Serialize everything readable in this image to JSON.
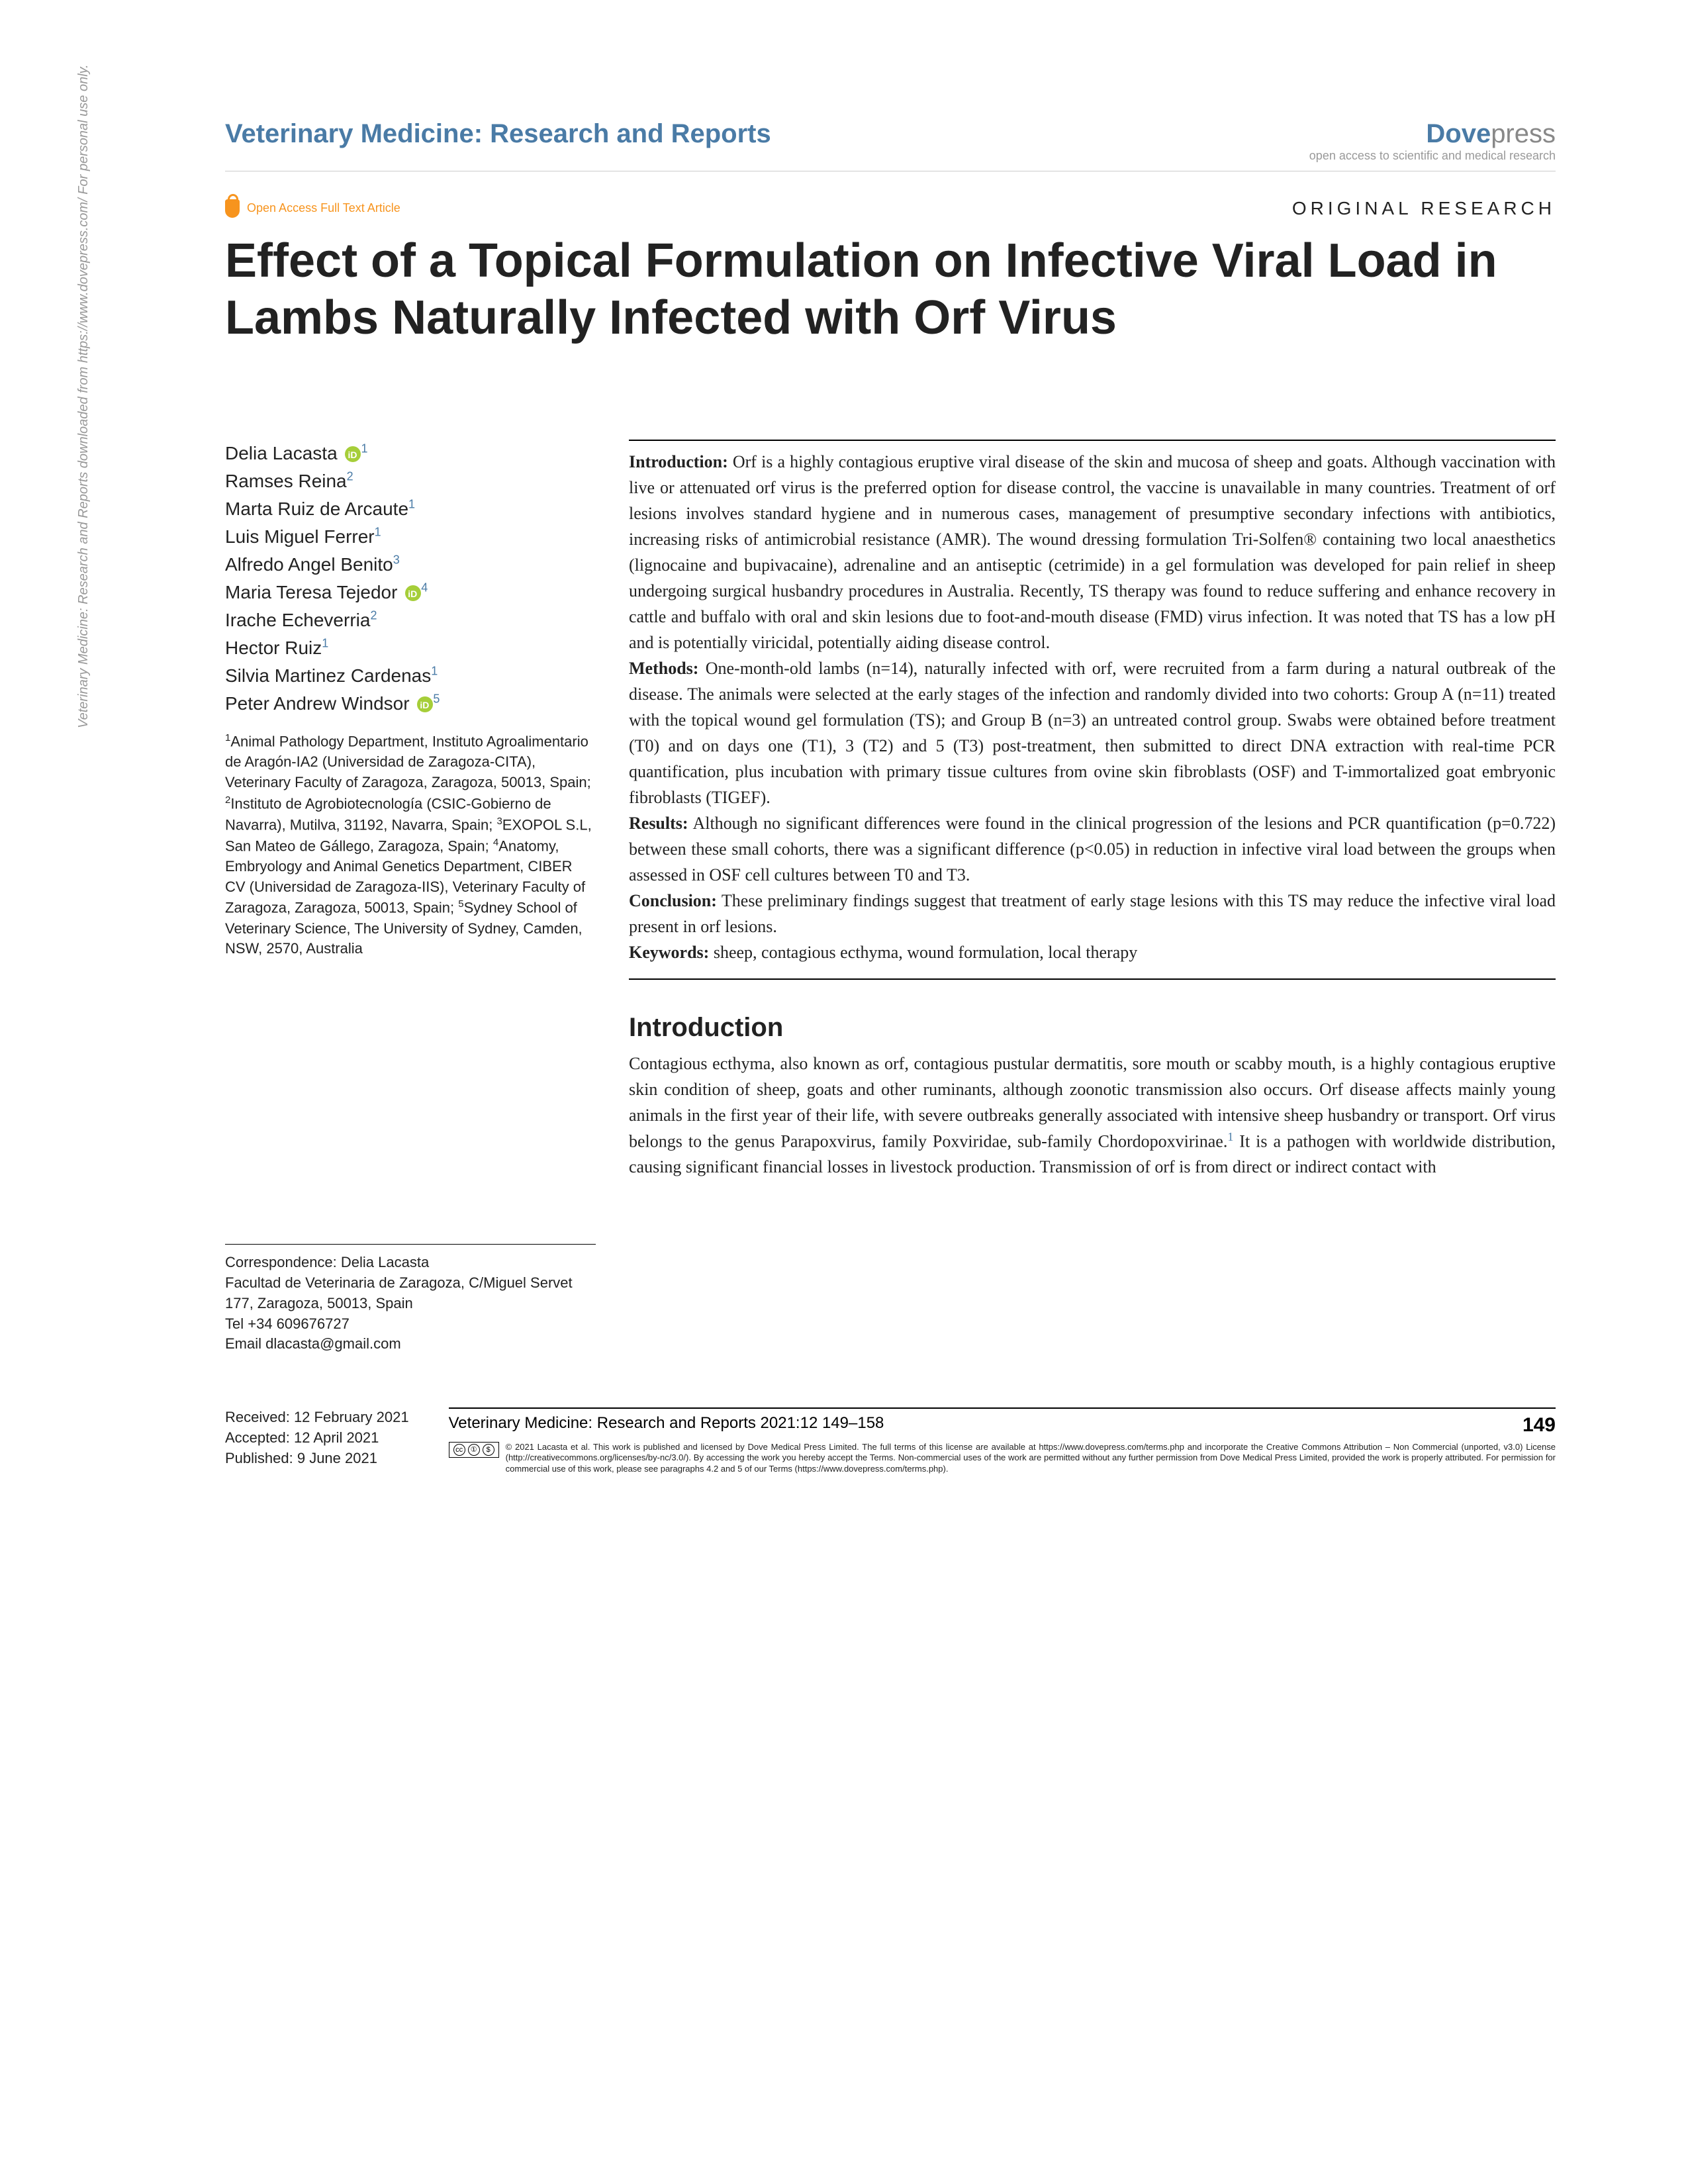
{
  "sidebar_note": "Veterinary Medicine: Research and Reports downloaded from https://www.dovepress.com/   For personal use only.",
  "header": {
    "journal": "Veterinary Medicine: Research and Reports",
    "publisher_main": "Dove",
    "publisher_suffix": "press",
    "publisher_tagline": "open access to scientific and medical research"
  },
  "meta": {
    "open_access_label": "Open Access Full Text Article",
    "category": "ORIGINAL RESEARCH",
    "title": "Effect of a Topical Formulation on Infective Viral Load in Lambs Naturally Infected with Orf Virus"
  },
  "authors": [
    {
      "name": "Delia Lacasta",
      "aff": "1",
      "orcid": true
    },
    {
      "name": "Ramses Reina",
      "aff": "2",
      "orcid": false
    },
    {
      "name": "Marta Ruiz de Arcaute",
      "aff": "1",
      "orcid": false
    },
    {
      "name": "Luis Miguel Ferrer",
      "aff": "1",
      "orcid": false
    },
    {
      "name": "Alfredo Angel Benito",
      "aff": "3",
      "orcid": false
    },
    {
      "name": "Maria Teresa Tejedor",
      "aff": "4",
      "orcid": true
    },
    {
      "name": "Irache Echeverria",
      "aff": "2",
      "orcid": false
    },
    {
      "name": "Hector Ruiz",
      "aff": "1",
      "orcid": false
    },
    {
      "name": "Silvia Martinez Cardenas",
      "aff": "1",
      "orcid": false
    },
    {
      "name": "Peter Andrew Windsor",
      "aff": "5",
      "orcid": true
    }
  ],
  "affiliations_html": "<sup>1</sup>Animal Pathology Department, Instituto Agroalimentario de Aragón-IA2 (Universidad de Zaragoza-CITA), Veterinary Faculty of Zaragoza, Zaragoza, 50013, Spain; <sup>2</sup>Instituto de Agrobiotecnología (CSIC-Gobierno de Navarra), Mutilva, 31192, Navarra, Spain; <sup>3</sup>EXOPOL S.L, San Mateo de Gállego, Zaragoza, Spain; <sup>4</sup>Anatomy, Embryology and Animal Genetics Department, CIBER CV (Universidad de Zaragoza-IIS), Veterinary Faculty of Zaragoza, Zaragoza, 50013, Spain; <sup>5</sup>Sydney School of Veterinary Science, The University of Sydney, Camden, NSW, 2570, Australia",
  "abstract": {
    "intro_label": "Introduction:",
    "intro": " Orf is a highly contagious eruptive viral disease of the skin and mucosa of sheep and goats. Although vaccination with live or attenuated orf virus is the preferred option for disease control, the vaccine is unavailable in many countries. Treatment of orf lesions involves standard hygiene and in numerous cases, management of presumptive secondary infections with antibiotics, increasing risks of antimicrobial resistance (AMR). The wound dressing formulation Tri-Solfen® containing two local anaesthetics (lignocaine and bupivacaine), adrenaline and an antiseptic (cetrimide) in a gel formulation was developed for pain relief in sheep undergoing surgical husbandry procedures in Australia. Recently, TS therapy was found to reduce suffering and enhance recovery in cattle and buffalo with oral and skin lesions due to foot-and-mouth disease (FMD) virus infection. It was noted that TS has a low pH and is potentially viricidal, potentially aiding disease control.",
    "methods_label": "Methods:",
    "methods": " One-month-old lambs (n=14), naturally infected with orf, were recruited from a farm during a natural outbreak of the disease. The animals were selected at the early stages of the infection and randomly divided into two cohorts: Group A (n=11) treated with the topical wound gel formulation (TS); and Group B (n=3) an untreated control group. Swabs were obtained before treatment (T0) and on days one (T1), 3 (T2) and 5 (T3) post-treatment, then submitted to direct DNA extraction with real-time PCR quantification, plus incubation with primary tissue cultures from ovine skin fibroblasts (OSF) and T-immortalized goat embryonic fibroblasts (TIGEF).",
    "results_label": "Results:",
    "results": " Although no significant differences were found in the clinical progression of the lesions and PCR quantification (p=0.722) between these small cohorts, there was a significant difference (p<0.05) in reduction in infective viral load between the groups when assessed in OSF cell cultures between T0 and T3.",
    "conclusion_label": "Conclusion:",
    "conclusion": " These preliminary findings suggest that treatment of early stage lesions with this TS may reduce the infective viral load present in orf lesions.",
    "keywords_label": "Keywords:",
    "keywords": " sheep, contagious ecthyma, wound formulation, local therapy"
  },
  "intro_section": {
    "heading": "Introduction",
    "body_html": "Contagious ecthyma, also known as orf, contagious pustular dermatitis, sore mouth or scabby mouth, is a highly contagious eruptive skin condition of sheep, goats and other ruminants, although zoonotic transmission also occurs. Orf disease affects mainly young animals in the first year of their life, with severe outbreaks generally associated with intensive sheep husbandry or transport. Orf virus belongs to the genus Parapoxvirus, family Poxviridae, sub-family Chordopoxvirinae.<sup>1</sup> It is a pathogen with worldwide distribution, causing significant financial losses in livestock production. Transmission of orf is from direct or indirect contact with"
  },
  "correspondence": {
    "label": "Correspondence:",
    "name": "Delia Lacasta",
    "address": "Facultad de Veterinaria de Zaragoza, C/Miguel Servet 177, Zaragoza, 50013, Spain",
    "tel_label": "Tel",
    "tel": "+34 609676727",
    "email_label": "Email",
    "email": "dlacasta@gmail.com"
  },
  "footer": {
    "received": "Received: 12 February 2021",
    "accepted": "Accepted: 12 April 2021",
    "published": "Published: 9 June 2021",
    "journal_line": "Veterinary Medicine: Research and Reports 2021:12 149–158",
    "page": "149",
    "license": "© 2021 Lacasta et al. This work is published and licensed by Dove Medical Press Limited. The full terms of this license are available at https://www.dovepress.com/terms.php and incorporate the Creative Commons Attribution – Non Commercial (unported, v3.0) License (http://creativecommons.org/licenses/by-nc/3.0/). By accessing the work you hereby accept the Terms. Non-commercial uses of the work are permitted without any further permission from Dove Medical Press Limited, provided the work is properly attributed. For permission for commercial use of this work, please see paragraphs 4.2 and 5 of our Terms (https://www.dovepress.com/terms.php)."
  },
  "colors": {
    "journal_blue": "#4a7ba6",
    "orange": "#f7941e",
    "orcid_green": "#a6ce39",
    "grey": "#999999"
  }
}
